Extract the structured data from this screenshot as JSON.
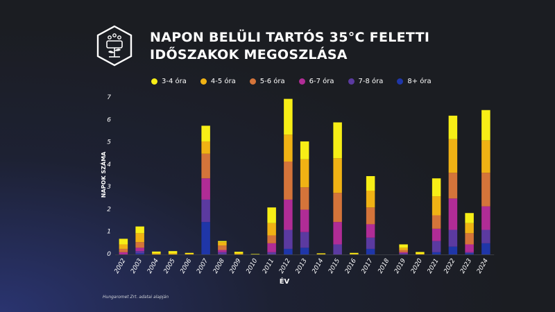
{
  "title_line1": "NAPON BELÜLI TARTÓS 35°C FELETTI",
  "title_line2": "IDŐSZAKOK MEGOSZLÁSA",
  "source": "Hungaromet Zrt. adatai alapján",
  "chart_data": {
    "type": "bar",
    "stacked": true,
    "xlabel": "ÉV",
    "ylabel": "NAPOK SZÁMA",
    "ylim": [
      0,
      7
    ],
    "yticks": [
      0,
      1,
      2,
      3,
      4,
      5,
      6,
      7
    ],
    "grid": false,
    "legend_position": "top",
    "categories": [
      "2002",
      "2003",
      "2004",
      "2005",
      "2006",
      "2007",
      "2008",
      "2009",
      "2010",
      "2011",
      "2012",
      "2013",
      "2014",
      "2015",
      "2016",
      "2017",
      "2018",
      "2019",
      "2020",
      "2021",
      "2022",
      "2023",
      "2024"
    ],
    "series": [
      {
        "name": "8+ óra",
        "color": "#1f36a8",
        "values": [
          0,
          0.05,
          0,
          0,
          0,
          1.45,
          0,
          0,
          0,
          0,
          0.25,
          0.3,
          0,
          0,
          0,
          0.25,
          0,
          0,
          0,
          0.1,
          0.35,
          0.05,
          0.5
        ]
      },
      {
        "name": "7-8 óra",
        "color": "#5b3aa0",
        "values": [
          0,
          0.1,
          0,
          0,
          0,
          1.0,
          0.1,
          0,
          0,
          0.1,
          0.85,
          0.7,
          0,
          0.45,
          0,
          0.5,
          0,
          0.05,
          0,
          0.5,
          0.75,
          0.05,
          0.6
        ]
      },
      {
        "name": "6-7 óra",
        "color": "#b02c96",
        "values": [
          0.1,
          0.15,
          0,
          0,
          0,
          0.95,
          0.1,
          0,
          0,
          0.4,
          1.35,
          1.0,
          0,
          1.0,
          0,
          0.6,
          0,
          0.05,
          0,
          0.55,
          1.4,
          0.35,
          1.05
        ]
      },
      {
        "name": "5-6 óra",
        "color": "#d4743a",
        "values": [
          0.15,
          0.25,
          0,
          0,
          0,
          1.1,
          0.2,
          0,
          0,
          0.35,
          1.7,
          1.0,
          0,
          1.3,
          0,
          0.75,
          0,
          0.1,
          0,
          0.6,
          1.15,
          0.5,
          1.5
        ]
      },
      {
        "name": "4-5 óra",
        "color": "#f0b214",
        "values": [
          0.2,
          0.4,
          0.05,
          0.05,
          0.03,
          0.55,
          0.15,
          0.05,
          0,
          0.55,
          1.2,
          1.25,
          0.02,
          1.55,
          0.02,
          0.75,
          0,
          0.1,
          0.03,
          0.85,
          1.5,
          0.45,
          1.45
        ]
      },
      {
        "name": "3-4 óra",
        "color": "#f7ee16",
        "values": [
          0.25,
          0.3,
          0.08,
          0.1,
          0.04,
          0.7,
          0.05,
          0.07,
          0.02,
          0.7,
          1.6,
          0.8,
          0.03,
          1.6,
          0.05,
          0.65,
          0,
          0.15,
          0.08,
          0.8,
          1.05,
          0.45,
          1.35
        ]
      }
    ]
  }
}
